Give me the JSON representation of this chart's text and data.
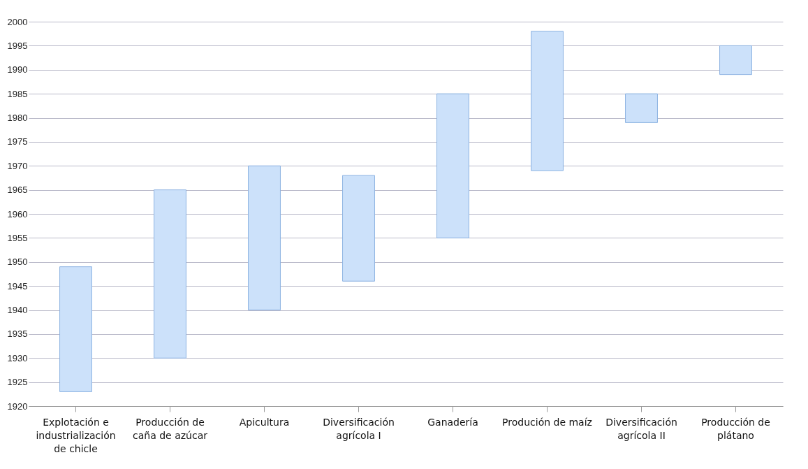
{
  "chart_data": {
    "type": "bar",
    "categories": [
      "Explotación e industrialización de chicle",
      "Producción de caña de azúcar",
      "Apicultura",
      "Diversificación agrícola I",
      "Ganadería",
      "Produción de maíz",
      "Diversificación agrícola II",
      "Producción de plátano"
    ],
    "base": [
      1923,
      1930,
      1940,
      1946,
      1955,
      1969,
      1979,
      1989
    ],
    "values": [
      26,
      35,
      30,
      22,
      30,
      29,
      6,
      6
    ],
    "color": "#cce1fa",
    "ylim": [
      1920,
      2000
    ],
    "yticks": [
      1920,
      1925,
      1930,
      1935,
      1940,
      1945,
      1950,
      1955,
      1960,
      1965,
      1970,
      1975,
      1980,
      1985,
      1990,
      1995,
      2000
    ],
    "grid": "y"
  }
}
